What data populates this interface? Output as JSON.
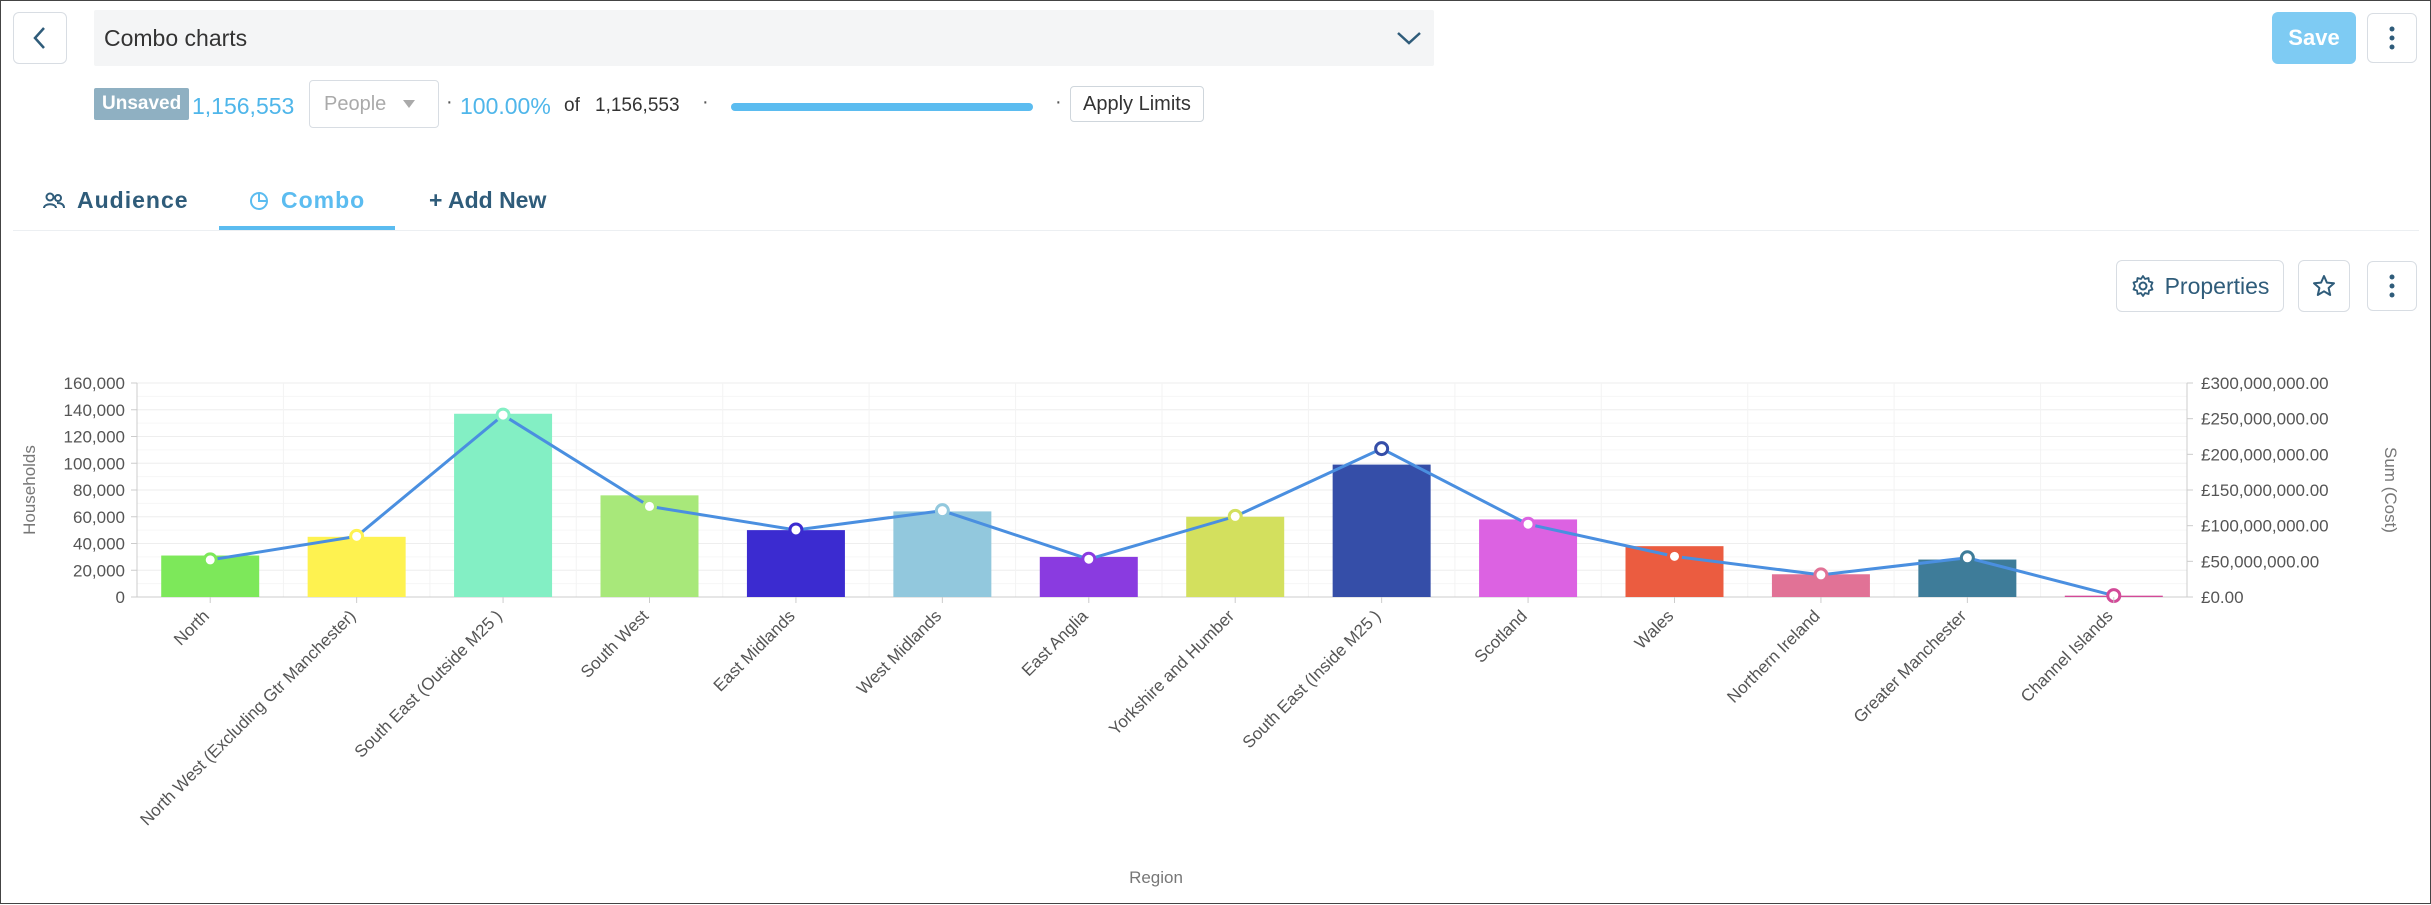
{
  "header": {
    "title": "Combo charts",
    "save_label": "Save"
  },
  "summary": {
    "badge": "Unsaved",
    "count": "1,156,553",
    "entity": "People",
    "percent": "100.00%",
    "of_label": "of",
    "total": "1,156,553",
    "progress": 1.0,
    "apply_label": "Apply Limits"
  },
  "tabs": [
    {
      "label": "Audience"
    },
    {
      "label": "Combo"
    },
    {
      "label": "+ Add New"
    }
  ],
  "toolbar": {
    "properties_label": "Properties"
  },
  "icons": {
    "back": "chevron-left-icon",
    "dropdown": "chevron-down-icon",
    "more": "kebab-icon",
    "audience": "people-icon",
    "combo": "pie-icon",
    "properties": "gear-icon",
    "favorite": "star-icon"
  },
  "colors": {
    "accent": "#5bbcf0",
    "line": "#4a8fe0"
  },
  "chart_data": {
    "type": "bar",
    "xlabel": "Region",
    "ylabel": "Households",
    "y2label": "Sum (Cost)",
    "ylim": [
      0,
      160000
    ],
    "y2lim": [
      0,
      300000000
    ],
    "yticks": [
      "0",
      "20,000",
      "40,000",
      "60,000",
      "80,000",
      "100,000",
      "120,000",
      "140,000",
      "160,000"
    ],
    "y2ticks": [
      "£0.00",
      "£50,000,000.00",
      "£100,000,000.00",
      "£150,000,000.00",
      "£200,000,000.00",
      "£250,000,000.00",
      "£300,000,000.00"
    ],
    "grid": true,
    "categories": [
      "North",
      "North West (Excluding Gtr Manchester)",
      "South East (Outside M25 )",
      "South West",
      "East Midlands",
      "West Midlands",
      "East Anglia",
      "Yorkshire and Humber",
      "South East (Inside M25 )",
      "Scotland",
      "Wales",
      "Northern Ireland",
      "Greater Manchester",
      "Channel Islands"
    ],
    "bar_colors": [
      "#7de85a",
      "#fef250",
      "#83efc4",
      "#a8e87a",
      "#3b2bd0",
      "#92c8dd",
      "#8a3be0",
      "#d3e05e",
      "#354ea8",
      "#dc62e2",
      "#eb5c40",
      "#e17296",
      "#3e7c99",
      "#d24a98"
    ],
    "series": [
      {
        "type": "bar",
        "values": [
          31000,
          45000,
          137000,
          76000,
          50000,
          64000,
          30000,
          60000,
          99000,
          58000,
          38000,
          17000,
          28000,
          1000
        ]
      },
      {
        "type": "line",
        "axis": "y2",
        "values": [
          52000000,
          85000000,
          255000000,
          127000000,
          94000000,
          121000000,
          53000000,
          113000000,
          208000000,
          102000000,
          57000000,
          31000000,
          55000000,
          2000000
        ]
      }
    ]
  }
}
